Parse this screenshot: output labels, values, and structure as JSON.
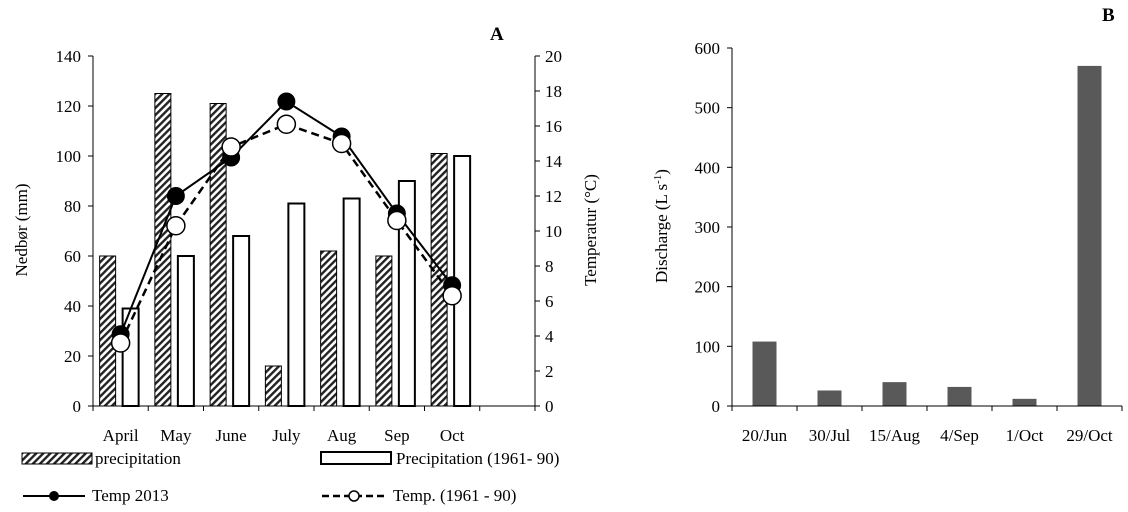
{
  "chart_data": [
    {
      "panel_label": "A",
      "type": "bar",
      "categories": [
        "April",
        "May",
        "June",
        "July",
        "Aug",
        "Sep",
        "Oct"
      ],
      "series": [
        {
          "name": "precipitation",
          "axis": "left",
          "type": "bar",
          "pattern": "diagonal-hatch",
          "values": [
            60,
            125,
            121,
            16,
            62,
            60,
            101
          ]
        },
        {
          "name": "Precipitation (1961- 90)",
          "axis": "left",
          "type": "bar",
          "pattern": "white",
          "values": [
            39,
            60,
            68,
            81,
            83,
            90,
            100
          ]
        },
        {
          "name": "Temp 2013",
          "axis": "right",
          "type": "line",
          "style": "solid",
          "marker": "filled-circle",
          "values": [
            4.1,
            12.0,
            14.2,
            17.4,
            15.4,
            11.0,
            6.9
          ]
        },
        {
          "name": "Temp. (1961 - 90)",
          "axis": "right",
          "type": "line",
          "style": "dashed",
          "marker": "open-circle",
          "values": [
            3.6,
            10.3,
            14.8,
            16.1,
            15.0,
            10.6,
            6.3
          ]
        }
      ],
      "ylabel": "Nedbør (mm)",
      "ylim": [
        0,
        140
      ],
      "yticks": [
        "0",
        "20",
        "40",
        "60",
        "80",
        "100",
        "120",
        "140"
      ],
      "y2label": "Temperatur (°C)",
      "y2lim": [
        0,
        20
      ],
      "y2ticks": [
        "0",
        "2",
        "4",
        "6",
        "8",
        "10",
        "12",
        "14",
        "16",
        "18",
        "20"
      ],
      "grid": false,
      "legend_position": "bottom"
    },
    {
      "panel_label": "B",
      "type": "bar",
      "categories": [
        "20/Jun",
        "30/Jul",
        "15/Aug",
        "4/Sep",
        "1/Oct",
        "29/Oct"
      ],
      "values": [
        108,
        26,
        40,
        32,
        12,
        570
      ],
      "bar_color": "#595959",
      "ylabel_main": "Discharge (L s",
      "ylabel_sup": "-1",
      "ylabel_end": ")",
      "ylim": [
        0,
        600
      ],
      "yticks": [
        "0",
        "100",
        "200",
        "300",
        "400",
        "500",
        "600"
      ],
      "grid": false
    }
  ]
}
